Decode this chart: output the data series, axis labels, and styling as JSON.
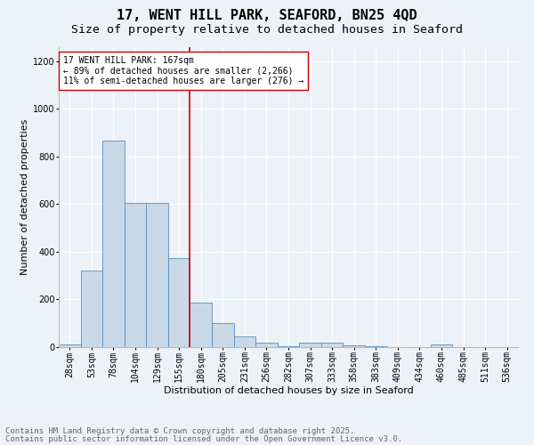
{
  "title": "17, WENT HILL PARK, SEAFORD, BN25 4QD",
  "subtitle": "Size of property relative to detached houses in Seaford",
  "xlabel": "Distribution of detached houses by size in Seaford",
  "ylabel": "Number of detached properties",
  "categories": [
    "28sqm",
    "53sqm",
    "78sqm",
    "104sqm",
    "129sqm",
    "155sqm",
    "180sqm",
    "205sqm",
    "231sqm",
    "256sqm",
    "282sqm",
    "307sqm",
    "333sqm",
    "358sqm",
    "383sqm",
    "409sqm",
    "434sqm",
    "460sqm",
    "485sqm",
    "511sqm",
    "536sqm"
  ],
  "values": [
    10,
    320,
    865,
    605,
    605,
    375,
    185,
    100,
    45,
    20,
    5,
    18,
    18,
    8,
    3,
    0,
    0,
    10,
    0,
    0,
    0
  ],
  "bar_color": "#c9d9e8",
  "bar_edge_color": "#5a90c0",
  "vline_x_index": 5.48,
  "vline_color": "#cc0000",
  "annotation_text": "17 WENT HILL PARK: 167sqm\n← 89% of detached houses are smaller (2,266)\n11% of semi-detached houses are larger (276) →",
  "annotation_box_color": "#ffffff",
  "annotation_box_edge": "#cc0000",
  "ylim": [
    0,
    1260
  ],
  "yticks": [
    0,
    200,
    400,
    600,
    800,
    1000,
    1200
  ],
  "footer_line1": "Contains HM Land Registry data © Crown copyright and database right 2025.",
  "footer_line2": "Contains public sector information licensed under the Open Government Licence v3.0.",
  "bg_color": "#edf2f8",
  "plot_bg_color": "#edf2f8",
  "title_fontsize": 11,
  "subtitle_fontsize": 9.5,
  "axis_label_fontsize": 8,
  "tick_fontsize": 7,
  "annotation_fontsize": 7,
  "footer_fontsize": 6.5
}
